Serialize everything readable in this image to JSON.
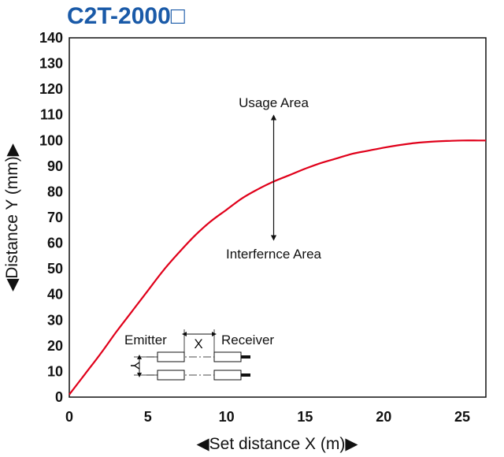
{
  "chart_data": {
    "type": "line",
    "title": "C2T-2000□",
    "xlabel": "◀Set distance X (m)▶",
    "ylabel": "◀Distance Y (mm)▶",
    "xlim": [
      0,
      26.5
    ],
    "ylim": [
      0,
      140
    ],
    "x_ticks": [
      "0",
      "5",
      "10",
      "15",
      "20",
      "25"
    ],
    "y_ticks": [
      "0",
      "10",
      "20",
      "30",
      "40",
      "50",
      "60",
      "70",
      "80",
      "90",
      "100",
      "110",
      "120",
      "130",
      "140"
    ],
    "grid": false,
    "series": [
      {
        "color": "#e0001a",
        "x": [
          0,
          1,
          2,
          3,
          4,
          5,
          6,
          7,
          8,
          9,
          10,
          11,
          12,
          13,
          14,
          15,
          16,
          17,
          18,
          19,
          20,
          21,
          22,
          23,
          24,
          25,
          26,
          26.5
        ],
        "y": [
          1,
          9,
          17,
          25.5,
          33.5,
          41.5,
          49.5,
          56.5,
          63,
          68.5,
          73,
          77.5,
          81,
          84,
          86.5,
          89,
          91.2,
          93,
          94.8,
          96,
          97.2,
          98.2,
          99,
          99.5,
          99.8,
          100,
          100,
          100
        ]
      }
    ],
    "annotations": {
      "upper": "Usage Area",
      "lower": "Interfernce Area",
      "arrow_x": 13
    },
    "inset": {
      "emitter": "Emitter",
      "receiver": "Receiver",
      "x_label": "X",
      "y_label": "Y"
    }
  }
}
